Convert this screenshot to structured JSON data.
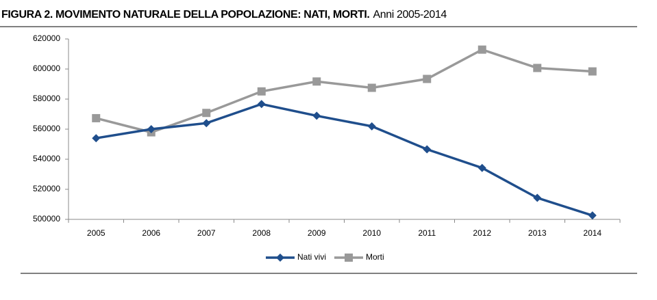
{
  "chart_data": {
    "type": "line",
    "title": "FIGURA 2. MOVIMENTO NATURALE DELLA POPOLAZIONE: NATI, MORTI.",
    "subtitle": "Anni 2005-2014",
    "categories": [
      "2005",
      "2006",
      "2007",
      "2008",
      "2009",
      "2010",
      "2011",
      "2012",
      "2013",
      "2014"
    ],
    "series": [
      {
        "name": "Nati vivi",
        "color": "#1f4e8c",
        "marker": "diamond",
        "values": [
          554000,
          560000,
          564000,
          576700,
          568900,
          561900,
          546600,
          534200,
          514300,
          502600
        ]
      },
      {
        "name": "Morti",
        "color": "#999999",
        "marker": "square",
        "values": [
          567300,
          557900,
          570800,
          585100,
          591700,
          587500,
          593400,
          612900,
          600700,
          598400
        ]
      }
    ],
    "ylim": [
      500000,
      620000
    ],
    "yticks": [
      500000,
      520000,
      540000,
      560000,
      580000,
      600000,
      620000
    ],
    "grid": false,
    "legend": "bottom"
  }
}
